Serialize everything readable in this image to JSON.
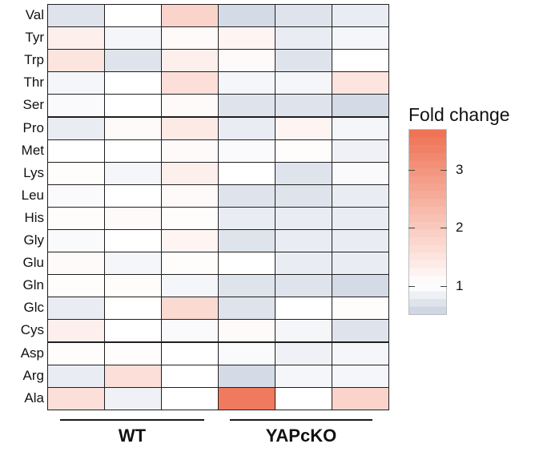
{
  "chart_data": {
    "type": "heatmap",
    "rows": [
      "Val",
      "Tyr",
      "Trp",
      "Thr",
      "Ser",
      "Pro",
      "Met",
      "Lys",
      "Leu",
      "His",
      "Gly",
      "Glu",
      "Gln",
      "Glc",
      "Cys",
      "Asp",
      "Arg",
      "Ala"
    ],
    "groups": [
      {
        "label": "WT",
        "columns": 3
      },
      {
        "label": "YAPcKO",
        "columns": 3
      }
    ],
    "values": [
      [
        0.7,
        1.0,
        1.8,
        0.6,
        0.7,
        0.8
      ],
      [
        1.3,
        0.9,
        1.1,
        1.2,
        0.8,
        0.9
      ],
      [
        1.5,
        0.7,
        1.3,
        1.1,
        0.7,
        1.0
      ],
      [
        0.9,
        1.0,
        1.6,
        0.9,
        0.9,
        1.5
      ],
      [
        0.95,
        1.0,
        1.1,
        0.7,
        0.7,
        0.6
      ],
      [
        0.8,
        1.1,
        1.4,
        0.8,
        1.2,
        0.9
      ],
      [
        1.0,
        1.0,
        1.1,
        0.95,
        1.05,
        0.85
      ],
      [
        1.05,
        0.9,
        1.3,
        1.0,
        0.7,
        0.95
      ],
      [
        0.95,
        1.0,
        1.1,
        0.7,
        0.7,
        0.8
      ],
      [
        1.05,
        1.1,
        1.05,
        0.8,
        0.8,
        0.8
      ],
      [
        0.95,
        1.0,
        1.2,
        0.7,
        0.8,
        0.8
      ],
      [
        1.1,
        0.9,
        1.05,
        1.0,
        0.8,
        0.8
      ],
      [
        1.05,
        1.05,
        0.9,
        0.7,
        0.7,
        0.6
      ],
      [
        0.8,
        1.0,
        1.7,
        0.7,
        1.0,
        1.05
      ],
      [
        1.3,
        1.0,
        0.95,
        1.1,
        0.9,
        0.7
      ],
      [
        1.05,
        1.05,
        1.0,
        0.95,
        0.85,
        0.9
      ],
      [
        0.8,
        1.6,
        1.0,
        0.6,
        0.9,
        0.9
      ],
      [
        1.6,
        0.85,
        1.0,
        3.5,
        1.0,
        1.8
      ]
    ],
    "colorbar": {
      "title": "Fold change",
      "range": [
        0.5,
        3.7
      ],
      "ticks": [
        1,
        2,
        3
      ],
      "colors": {
        "low": "#c9d1e0",
        "mid": "#ffffff",
        "high": "#ef6f50"
      }
    }
  }
}
